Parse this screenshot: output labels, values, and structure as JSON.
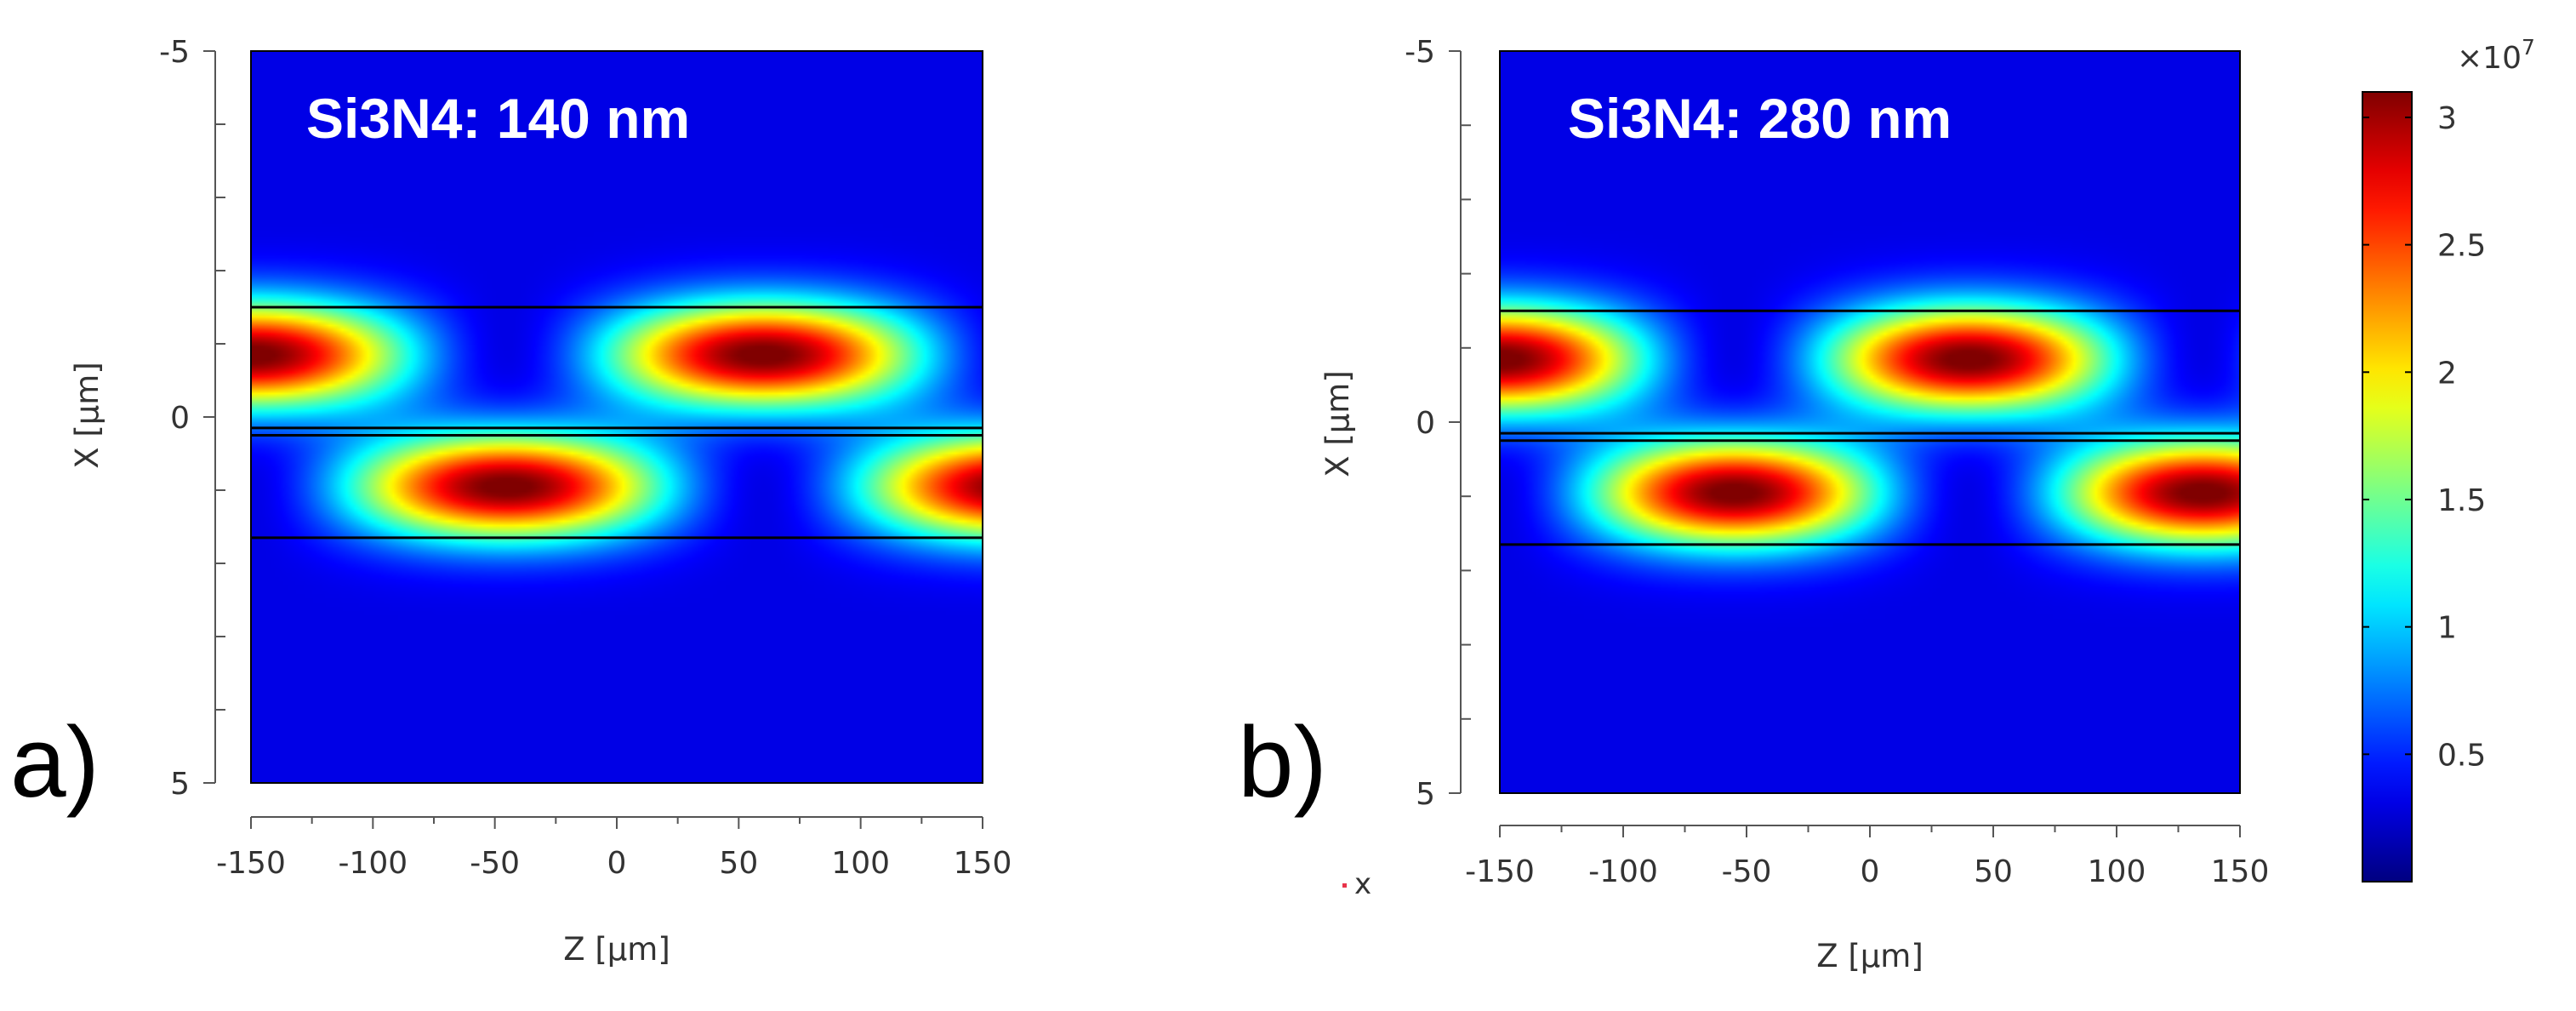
{
  "figure": {
    "colorbar": {
      "multiplier": "×10",
      "exponent": "7",
      "vmin": 0.0,
      "vmax": 3.1,
      "ticks": [
        0.5,
        1,
        1.5,
        2,
        2.5,
        3
      ],
      "tick_labels": [
        "0.5",
        "1",
        "1.5",
        "2",
        "2.5",
        "3"
      ]
    },
    "stray_mark": {
      "label": "x",
      "color": "#e8334a"
    },
    "line_color": "#000000",
    "annotation_color": "#ffffff"
  },
  "chart_data": [
    {
      "type": "heatmap",
      "panel_label": "a)",
      "title": "Si3N4: 140 nm",
      "xlabel": "Z [µm]",
      "ylabel": "X [µm]",
      "xlim": [
        -150,
        150
      ],
      "ylim": [
        -5,
        5
      ],
      "xticks": [
        -150,
        -100,
        -50,
        0,
        50,
        100,
        150
      ],
      "xtick_labels": [
        "-150",
        "-100",
        "-50",
        "0",
        "50",
        "100",
        "150"
      ],
      "yticks": [
        -5,
        0,
        5
      ],
      "ytick_labels": [
        "-5",
        "0",
        "5"
      ],
      "y_minor_step": 1,
      "beat_period_um": 210,
      "top_guide": {
        "x_range": [
          -1.5,
          0.15
        ],
        "center_x": -0.85,
        "peak_z": [
          -150,
          60
        ]
      },
      "bottom_guide": {
        "x_range": [
          0.25,
          1.65
        ],
        "center_x": 0.95,
        "peak_z": [
          -45,
          150
        ]
      },
      "interface_lines_x": [
        -1.5,
        0.15,
        0.25,
        1.65
      ],
      "peak_value": 3.1
    },
    {
      "type": "heatmap",
      "panel_label": "b)",
      "title": "Si3N4: 280 nm",
      "xlabel": "Z [µm]",
      "ylabel": "X [µm]",
      "xlim": [
        -150,
        150
      ],
      "ylim": [
        -5,
        5
      ],
      "xticks": [
        -150,
        -100,
        -50,
        0,
        50,
        100,
        150
      ],
      "xtick_labels": [
        "-150",
        "-100",
        "-50",
        "0",
        "50",
        "100",
        "150"
      ],
      "yticks": [
        -5,
        0,
        5
      ],
      "ytick_labels": [
        "-5",
        "0",
        "5"
      ],
      "y_minor_step": 1,
      "beat_period_um": 190,
      "top_guide": {
        "x_range": [
          -1.5,
          0.15
        ],
        "center_x": -0.85,
        "peak_z": [
          -150,
          40
        ]
      },
      "bottom_guide": {
        "x_range": [
          0.25,
          1.65
        ],
        "center_x": 0.95,
        "peak_z": [
          -55,
          135
        ]
      },
      "interface_lines_x": [
        -1.5,
        0.15,
        0.25,
        1.65
      ],
      "peak_value": 3.1
    }
  ]
}
